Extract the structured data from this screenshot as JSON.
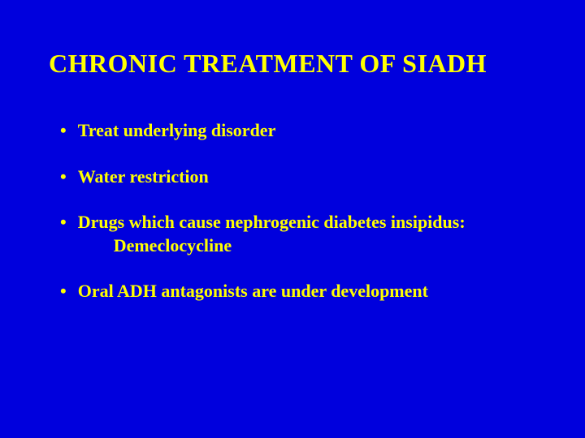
{
  "slide": {
    "background_color": "#0000dd",
    "text_color": "#ffff00",
    "title": "CHRONIC TREATMENT OF SIADH",
    "title_fontsize": 32,
    "bullet_fontsize": 22,
    "font_family": "Times New Roman",
    "bullets": [
      {
        "marker": "•",
        "text": "Treat underlying disorder"
      },
      {
        "marker": "•",
        "text": "Water restriction"
      },
      {
        "marker": "•",
        "text": "Drugs which cause nephrogenic diabetes insipidus:",
        "subtext": "Demeclocycline"
      },
      {
        "marker": "•",
        "text": "Oral ADH antagonists are under development"
      }
    ]
  }
}
